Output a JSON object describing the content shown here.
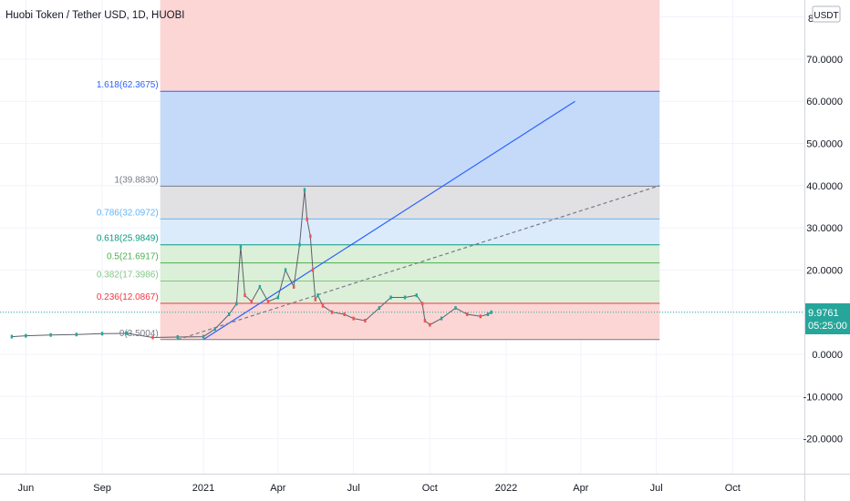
{
  "title": "Huobi Token / Tether USD, 1D, HUOBI",
  "currency_button": "USDT",
  "price_axis": {
    "ticks": [
      "80.0000",
      "70.0000",
      "60.0000",
      "50.0000",
      "40.0000",
      "30.0000",
      "20.0000",
      "10.0000",
      "0.0000",
      "-10.0000",
      "-20.0000"
    ],
    "visible_ticks": [
      "70.0000",
      "60.0000",
      "50.0000",
      "40.0000",
      "30.0000",
      "20.0000",
      "0.0000",
      "-10.0000",
      "-20.0000"
    ]
  },
  "time_axis": {
    "labels": [
      "Jun",
      "Sep",
      "2021",
      "Apr",
      "Jul",
      "Oct",
      "2022",
      "Apr",
      "Jul",
      "Oct"
    ]
  },
  "last_price": {
    "value": "9.9761",
    "countdown": "05:25:00",
    "color": "#26a69a"
  },
  "colors": {
    "red_zone": "#fcd6d5",
    "blue_zone": "#c5daf9",
    "gray_zone": "#e1e1e3",
    "lightblue_zone": "#dcebfb",
    "green_zone": "#dcefd9",
    "trend_blue": "#2962ff",
    "up": "#26a69a",
    "down": "#ef5350"
  },
  "fib_levels": [
    {
      "label": "1.618(62.3675)",
      "ratio": 1.618,
      "price": 62.3675,
      "color": "#2962ff"
    },
    {
      "label": "1(39.8830)",
      "ratio": 1,
      "price": 39.883,
      "color": "#787b86"
    },
    {
      "label": "0.786(32.0972)",
      "ratio": 0.786,
      "price": 32.0972,
      "color": "#64b5f6"
    },
    {
      "label": "0.618(25.9849)",
      "ratio": 0.618,
      "price": 25.9849,
      "color": "#089981"
    },
    {
      "label": "0.5(21.6917)",
      "ratio": 0.5,
      "price": 21.6917,
      "color": "#4caf50"
    },
    {
      "label": "0.382(17.3986)",
      "ratio": 0.382,
      "price": 17.3986,
      "color": "#81c784"
    },
    {
      "label": "0.236(12.0867)",
      "ratio": 0.236,
      "price": 12.0867,
      "color": "#f23645"
    },
    {
      "label": "0(3.5004)",
      "ratio": 0,
      "price": 3.5004,
      "color": "#787b86"
    }
  ],
  "chart_data": {
    "type": "line",
    "title": "Huobi Token / Tether USD, 1D, HUOBI",
    "xlabel": "",
    "ylabel": "",
    "ylim": [
      -28,
      82
    ],
    "grid": true,
    "x_unit": "month",
    "series": [
      {
        "values_x": [
          "2020-05-15",
          "2020-06-01",
          "2020-07-01",
          "2020-08-01",
          "2020-09-01",
          "2020-10-01",
          "2020-11-01",
          "2020-12-01",
          "2021-01-01",
          "2021-01-15",
          "2021-02-01",
          "2021-02-10",
          "2021-02-15",
          "2021-02-20",
          "2021-02-28",
          "2021-03-10",
          "2021-03-20",
          "2021-04-01",
          "2021-04-10",
          "2021-04-20",
          "2021-04-27",
          "2021-05-03",
          "2021-05-06",
          "2021-05-10",
          "2021-05-13",
          "2021-05-16",
          "2021-05-19",
          "2021-05-25",
          "2021-06-05",
          "2021-06-20",
          "2021-07-01",
          "2021-07-15",
          "2021-08-01",
          "2021-08-15",
          "2021-09-01",
          "2021-09-15",
          "2021-09-22",
          "2021-09-25",
          "2021-10-01",
          "2021-10-15",
          "2021-11-01",
          "2021-11-15",
          "2021-12-01",
          "2021-12-10",
          "2021-12-14"
        ],
        "values": [
          4.2,
          4.4,
          4.6,
          4.7,
          4.9,
          5.0,
          4.0,
          4.1,
          4.2,
          6.0,
          9.5,
          12.0,
          25.5,
          14.0,
          12.5,
          16.0,
          12.5,
          13.5,
          20.0,
          16.0,
          26.0,
          39.0,
          32.0,
          28.0,
          20.0,
          13.0,
          14.0,
          11.5,
          10.0,
          9.5,
          8.5,
          8.0,
          11.0,
          13.5,
          13.5,
          14.0,
          12.0,
          8.0,
          7.0,
          8.5,
          11.0,
          9.5,
          9.0,
          9.5,
          9.98
        ]
      }
    ],
    "trendlines": [
      {
        "from_x": "2021-01-01",
        "from_y": 3.5,
        "to_x": "2022-03-25",
        "to_y": 60.0,
        "style": "solid"
      },
      {
        "from_x": "2020-12-01",
        "from_y": 3.5,
        "to_x": "2022-07-05",
        "to_y": 40.0,
        "style": "dashed"
      }
    ]
  }
}
